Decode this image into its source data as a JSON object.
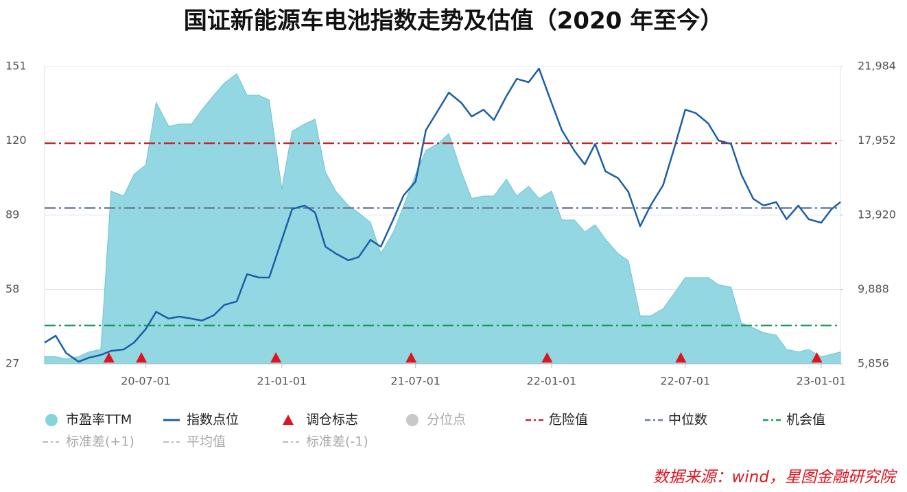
{
  "chart_data": {
    "type": "line",
    "title": "国证新能源车电池指数走势及估值（2020 年至今）",
    "source": "数据来源：wind，星图金融研究院",
    "x": [
      "20-02-15",
      "20-03-01",
      "20-03-15",
      "20-04-01",
      "20-04-15",
      "20-05-01",
      "20-05-15",
      "20-06-01",
      "20-06-15",
      "20-07-01",
      "20-07-15",
      "20-08-01",
      "20-08-15",
      "20-09-01",
      "20-09-15",
      "20-10-01",
      "20-10-15",
      "20-11-01",
      "20-11-15",
      "20-12-01",
      "20-12-15",
      "21-01-01",
      "21-01-15",
      "21-02-01",
      "21-02-15",
      "21-03-01",
      "21-03-15",
      "21-04-01",
      "21-04-15",
      "21-05-01",
      "21-05-15",
      "21-06-01",
      "21-06-15",
      "21-07-01",
      "21-07-15",
      "21-08-01",
      "21-08-15",
      "21-09-01",
      "21-09-15",
      "21-10-01",
      "21-10-15",
      "21-11-01",
      "21-11-15",
      "21-12-01",
      "21-12-15",
      "22-01-01",
      "22-01-15",
      "22-02-01",
      "22-02-15",
      "22-03-01",
      "22-03-15",
      "22-04-01",
      "22-04-15",
      "22-05-01",
      "22-05-15",
      "22-06-01",
      "22-06-15",
      "22-07-01",
      "22-07-15",
      "22-08-01",
      "22-08-15",
      "22-09-01",
      "22-09-15",
      "22-10-01",
      "22-10-15",
      "22-11-01",
      "22-11-15",
      "22-12-01",
      "22-12-15",
      "23-01-01",
      "23-01-15",
      "23-01-27"
    ],
    "series": [
      {
        "name": "市盈率TTM",
        "type": "area",
        "color": "#86d3de",
        "values": [
          30,
          30,
          29,
          30,
          32,
          33,
          99,
          97,
          106,
          110,
          136,
          126,
          127,
          127,
          133,
          139,
          144,
          148,
          139,
          139,
          137,
          100,
          124,
          127,
          129,
          107,
          99,
          93,
          90,
          86,
          73,
          82,
          93,
          106,
          116,
          119,
          123,
          107,
          96,
          97,
          97,
          104,
          97,
          101,
          96,
          99,
          87,
          87,
          82,
          85,
          79,
          73,
          70,
          47,
          47,
          50,
          56,
          63,
          63,
          63,
          60,
          59,
          44,
          42,
          40,
          39,
          33,
          32,
          33,
          30,
          31,
          32
        ]
      },
      {
        "name": "指数点位",
        "type": "line",
        "axis": "y2",
        "color": "#1b5ea8",
        "values": [
          7008,
          7380,
          6450,
          5970,
          6190,
          6340,
          6560,
          6636,
          7008,
          7750,
          8680,
          8310,
          8420,
          8310,
          8200,
          8490,
          9050,
          9240,
          10720,
          10540,
          10540,
          12580,
          14250,
          14440,
          14070,
          12210,
          11840,
          11470,
          11650,
          12580,
          12210,
          13700,
          15000,
          15740,
          18530,
          19640,
          20570,
          20010,
          19270,
          19640,
          19080,
          20380,
          21310,
          21130,
          21870,
          20010,
          18530,
          17410,
          16670,
          17780,
          16300,
          15930,
          15180,
          13320,
          14440,
          15550,
          17410,
          19640,
          19460,
          18900,
          17970,
          17780,
          16110,
          14810,
          14440,
          14630,
          13700,
          14440,
          13700,
          13510,
          14250,
          14630
        ]
      }
    ],
    "markers": {
      "name": "调仓标志",
      "color": "#e0141e",
      "x": [
        "20-05-12",
        "20-06-25",
        "20-12-24",
        "21-06-25",
        "21-12-26",
        "22-06-25",
        "22-12-26"
      ]
    },
    "reference_lines": [
      {
        "name": "危险值",
        "value": 119,
        "color": "#c0282c"
      },
      {
        "name": "中位数",
        "value": 92,
        "color": "#6b7c99"
      },
      {
        "name": "机会值",
        "value": 43,
        "color": "#1a9a5a"
      }
    ],
    "inactive_legend": [
      "分位点",
      "标准差(+1)",
      "平均值",
      "标准差(-1)"
    ],
    "xlim": [
      "20-02-15",
      "23-01-27"
    ],
    "xticks": [
      "20-07-01",
      "21-01-01",
      "21-07-01",
      "22-01-01",
      "22-07-01",
      "23-01-01"
    ],
    "ylim": [
      27,
      151
    ],
    "yticks": [
      27,
      58,
      89,
      120,
      151
    ],
    "y2lim": [
      5856,
      21984
    ],
    "y2ticks": [
      {
        "value": 5856,
        "label": "5,856"
      },
      {
        "value": 9888,
        "label": "9,888"
      },
      {
        "value": 13920,
        "label": "13,920"
      },
      {
        "value": 17952,
        "label": "17,952"
      },
      {
        "value": 21984,
        "label": "21,984"
      }
    ],
    "grid": true
  }
}
